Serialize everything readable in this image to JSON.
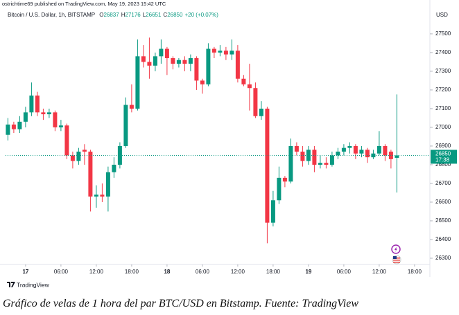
{
  "chart_data": {
    "type": "candlestick",
    "published": "ostrichtime69 published on TradingView.com, May 19, 2023 15:42 UTC",
    "symbol": "Bitcoin / U.S. Dollar, 1h, BITSTAMP",
    "ohlc_letters": [
      "O",
      "H",
      "L",
      "C"
    ],
    "ohlc_values": [
      26837,
      27176,
      26651,
      26850
    ],
    "change": "+20 (+0.07%)",
    "currency": "USD",
    "last_price": 26850,
    "countdown": "17:38",
    "logo": "TradingView",
    "caption": "Gráfico de velas de 1 hora del par BTC/USD en Bitstamp. Fuente: TradingView",
    "up_color": "#089981",
    "down_color": "#f23645",
    "x": [
      -3,
      -2,
      -1,
      0,
      1,
      2,
      3,
      4,
      5,
      6,
      7,
      8,
      9,
      10,
      11,
      12,
      13,
      14,
      15,
      16,
      17,
      18,
      19,
      20,
      21,
      22,
      23,
      24,
      25,
      26,
      27,
      28,
      29,
      30,
      31,
      32,
      33,
      34,
      35,
      36,
      37,
      38,
      39,
      40,
      41,
      42,
      43,
      44,
      45,
      46,
      47,
      48,
      49,
      50,
      51,
      52,
      53,
      54,
      55,
      56,
      57,
      58,
      59,
      60,
      61,
      62,
      63
    ],
    "open": [
      26960,
      27015,
      26990,
      27030,
      27080,
      27170,
      27080,
      27070,
      27080,
      27000,
      27010,
      26850,
      26820,
      26880,
      26870,
      26630,
      26640,
      26630,
      26760,
      26800,
      26900,
      27120,
      27100,
      27380,
      27350,
      27330,
      27380,
      27420,
      27370,
      27340,
      27360,
      27340,
      27370,
      27250,
      27230,
      27420,
      27400,
      27410,
      27390,
      27410,
      27260,
      27230,
      27210,
      27060,
      27100,
      26490,
      26610,
      26730,
      26710,
      26900,
      26870,
      26820,
      26880,
      26800,
      26810,
      26800,
      26850,
      26870,
      26890,
      26900,
      26860,
      26880,
      26840,
      26860,
      26900,
      26870,
      26837
    ],
    "high": [
      27050,
      27030,
      27060,
      27110,
      27240,
      27190,
      27100,
      27100,
      27090,
      27040,
      27020,
      26870,
      26890,
      26910,
      26880,
      26690,
      26700,
      26790,
      26840,
      26920,
      27160,
      27230,
      27470,
      27440,
      27480,
      27400,
      27470,
      27430,
      27380,
      27370,
      27380,
      27390,
      27380,
      27260,
      27450,
      27430,
      27440,
      27430,
      27470,
      27440,
      27280,
      27340,
      27240,
      27140,
      27110,
      26660,
      26790,
      26740,
      26940,
      26920,
      26900,
      26900,
      26900,
      26850,
      26840,
      26870,
      26890,
      26910,
      26920,
      26910,
      26900,
      26890,
      26880,
      26980,
      26910,
      26880,
      27176
    ],
    "low": [
      26930,
      26970,
      26970,
      27000,
      27060,
      27060,
      27040,
      27050,
      26980,
      26980,
      26830,
      26780,
      26800,
      26800,
      26550,
      26570,
      26600,
      26550,
      26730,
      26780,
      26890,
      27080,
      27090,
      27320,
      27260,
      27300,
      27340,
      27280,
      27310,
      27320,
      27300,
      27300,
      27200,
      27180,
      27220,
      27370,
      27380,
      27360,
      27360,
      27240,
      27220,
      27090,
      27050,
      27040,
      26380,
      26470,
      26590,
      26680,
      26700,
      26850,
      26790,
      26800,
      26760,
      26780,
      26780,
      26790,
      26830,
      26850,
      26860,
      26830,
      26840,
      26810,
      26830,
      26850,
      26820,
      26780,
      26651
    ],
    "close": [
      27015,
      26990,
      27030,
      27080,
      27170,
      27080,
      27070,
      27080,
      27000,
      27010,
      26850,
      26820,
      26870,
      26870,
      26630,
      26640,
      26630,
      26760,
      26800,
      26900,
      27120,
      27100,
      27380,
      27350,
      27330,
      27380,
      27420,
      27370,
      27340,
      27360,
      27340,
      27370,
      27250,
      27230,
      27420,
      27400,
      27410,
      27390,
      27410,
      27260,
      27230,
      27210,
      27060,
      27100,
      26490,
      26610,
      26730,
      26710,
      26900,
      26870,
      26820,
      26880,
      26800,
      26810,
      26800,
      26850,
      26870,
      26890,
      26900,
      26860,
      26880,
      26840,
      26860,
      26900,
      26850,
      26830,
      26850
    ],
    "xlim": [
      -3.4,
      68.6
    ],
    "xticks": [
      {
        "value": 0,
        "label": "17"
      },
      {
        "value": 6,
        "label": "06:00"
      },
      {
        "value": 12,
        "label": "12:00"
      },
      {
        "value": 18,
        "label": "18:00"
      },
      {
        "value": 24,
        "label": "18"
      },
      {
        "value": 30,
        "label": "06:00"
      },
      {
        "value": 36,
        "label": "12:00"
      },
      {
        "value": 42,
        "label": "18:00"
      },
      {
        "value": 48,
        "label": "19"
      },
      {
        "value": 54,
        "label": "06:00"
      },
      {
        "value": 60,
        "label": "12:00"
      },
      {
        "value": 66,
        "label": "18:00"
      }
    ],
    "bold_xticks": [
      0,
      4,
      8
    ],
    "ylim": [
      26274,
      27570
    ],
    "yticks": [
      26300,
      26400,
      26500,
      26600,
      26700,
      26800,
      26900,
      27000,
      27100,
      27200,
      27300,
      27400,
      27500
    ]
  }
}
